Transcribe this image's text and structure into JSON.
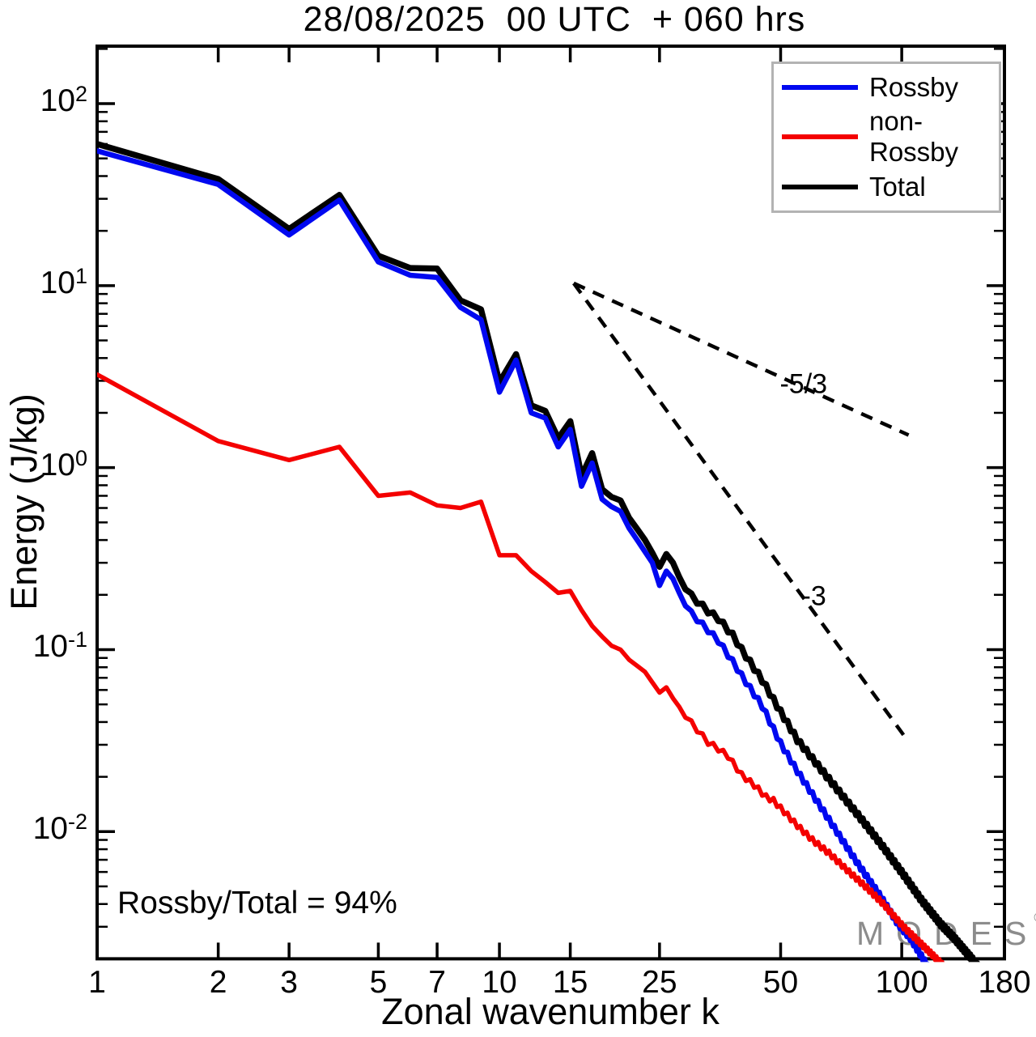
{
  "title": "28/08/2025  00 UTC  + 060 hrs",
  "axes": {
    "xlabel": "Zonal wavenumber k",
    "ylabel": "Energy (J/kg)"
  },
  "annotations": {
    "ratio_text": "Rossby/Total = 94%",
    "slope_shallow": "-5/3",
    "slope_steep": "-3"
  },
  "watermark": {
    "text": "MODES",
    "symbol": "©"
  },
  "legend": {
    "items": [
      {
        "label": "Rossby",
        "color": "#0008f0"
      },
      {
        "label": "non-Rossby",
        "color": "#f40000"
      },
      {
        "label": "Total",
        "color": "#000000"
      }
    ]
  },
  "chart_data": {
    "type": "line",
    "title": "28/08/2025  00 UTC  + 060 hrs",
    "xlabel": "Zonal wavenumber k",
    "ylabel": "Energy (J/kg)",
    "x_scale": "log",
    "y_scale": "log",
    "xlim": [
      1,
      180
    ],
    "ylim": [
      0.002,
      207
    ],
    "grid": false,
    "legend_position": "top-right",
    "x_ticks": [
      1,
      2,
      3,
      5,
      7,
      10,
      15,
      25,
      50,
      100,
      180
    ],
    "y_tick_exponents": [
      2,
      1,
      0,
      -1,
      -2
    ],
    "series": [
      {
        "name": "Rossby",
        "color": "#0008f0",
        "width": 6.5,
        "points": [
          [
            1,
            55
          ],
          [
            2,
            36
          ],
          [
            3,
            19
          ],
          [
            4,
            29.5
          ],
          [
            5,
            13.5
          ],
          [
            6,
            11.4
          ],
          [
            7,
            11.1
          ],
          [
            8,
            7.6
          ],
          [
            9,
            6.5
          ],
          [
            10,
            2.6
          ],
          [
            11,
            3.9
          ],
          [
            12,
            2.0
          ],
          [
            13,
            1.87
          ],
          [
            14,
            1.3
          ],
          [
            15,
            1.62
          ],
          [
            16,
            0.79
          ],
          [
            17,
            1.06
          ],
          [
            18,
            0.67
          ],
          [
            19,
            0.61
          ],
          [
            20,
            0.575
          ],
          [
            21,
            0.465
          ],
          [
            22,
            0.4
          ],
          [
            23,
            0.345
          ],
          [
            24,
            0.3
          ],
          [
            25,
            0.225
          ],
          [
            26,
            0.27
          ],
          [
            27,
            0.245
          ],
          [
            28,
            0.205
          ],
          [
            30,
            0.158
          ],
          [
            33,
            0.128
          ],
          [
            35,
            0.112
          ],
          [
            38,
            0.086
          ],
          [
            40,
            0.072
          ],
          [
            45,
            0.049
          ],
          [
            50,
            0.0305
          ],
          [
            55,
            0.0215
          ],
          [
            63,
            0.0136
          ],
          [
            70,
            0.0095
          ],
          [
            78,
            0.0066
          ],
          [
            88,
            0.0045
          ],
          [
            98,
            0.0031
          ],
          [
            105,
            0.0026
          ],
          [
            113,
            0.002
          ],
          [
            118,
            0.0017
          ]
        ]
      },
      {
        "name": "non-Rossby",
        "color": "#f40000",
        "width": 5.5,
        "points": [
          [
            1,
            3.25
          ],
          [
            2,
            1.4
          ],
          [
            3,
            1.1
          ],
          [
            4,
            1.3
          ],
          [
            5,
            0.7
          ],
          [
            6,
            0.73
          ],
          [
            7,
            0.62
          ],
          [
            8,
            0.6
          ],
          [
            9,
            0.65
          ],
          [
            10,
            0.33
          ],
          [
            11,
            0.33
          ],
          [
            12,
            0.27
          ],
          [
            13,
            0.235
          ],
          [
            14,
            0.205
          ],
          [
            15,
            0.21
          ],
          [
            16,
            0.165
          ],
          [
            17,
            0.135
          ],
          [
            18,
            0.118
          ],
          [
            19,
            0.105
          ],
          [
            20,
            0.1
          ],
          [
            21,
            0.088
          ],
          [
            23,
            0.0755
          ],
          [
            25,
            0.058
          ],
          [
            26,
            0.062
          ],
          [
            27,
            0.054
          ],
          [
            30,
            0.0395
          ],
          [
            33,
            0.031
          ],
          [
            35,
            0.0285
          ],
          [
            37,
            0.026
          ],
          [
            40,
            0.0205
          ],
          [
            43,
            0.018
          ],
          [
            46,
            0.0155
          ],
          [
            48,
            0.0148
          ],
          [
            55,
            0.0108
          ],
          [
            60,
            0.009
          ],
          [
            66,
            0.0076
          ],
          [
            74,
            0.006
          ],
          [
            82,
            0.0049
          ],
          [
            90,
            0.004
          ],
          [
            101,
            0.003
          ],
          [
            110,
            0.0025
          ],
          [
            122,
            0.002
          ],
          [
            128,
            0.0018
          ]
        ]
      },
      {
        "name": "Total",
        "color": "#000000",
        "width": 7.5,
        "points": [
          [
            1,
            60
          ],
          [
            2,
            38.5
          ],
          [
            3,
            20.5
          ],
          [
            4,
            31.5
          ],
          [
            5,
            14.6
          ],
          [
            6,
            12.5
          ],
          [
            7,
            12.4
          ],
          [
            8,
            8.3
          ],
          [
            9,
            7.4
          ],
          [
            10,
            2.95
          ],
          [
            11,
            4.2
          ],
          [
            12,
            2.2
          ],
          [
            13,
            2.05
          ],
          [
            14,
            1.45
          ],
          [
            15,
            1.8
          ],
          [
            16,
            0.9
          ],
          [
            17,
            1.2
          ],
          [
            18,
            0.76
          ],
          [
            19,
            0.69
          ],
          [
            20,
            0.66
          ],
          [
            21,
            0.53
          ],
          [
            22,
            0.46
          ],
          [
            23,
            0.4
          ],
          [
            24,
            0.34
          ],
          [
            25,
            0.285
          ],
          [
            26,
            0.335
          ],
          [
            27,
            0.3
          ],
          [
            28,
            0.25
          ],
          [
            30,
            0.197
          ],
          [
            33,
            0.163
          ],
          [
            35,
            0.148
          ],
          [
            38,
            0.12
          ],
          [
            40,
            0.1
          ],
          [
            45,
            0.068
          ],
          [
            50,
            0.0455
          ],
          [
            55,
            0.032
          ],
          [
            62,
            0.023
          ],
          [
            70,
            0.0165
          ],
          [
            82,
            0.0107
          ],
          [
            90,
            0.0082
          ],
          [
            101,
            0.0058
          ],
          [
            112,
            0.0042
          ],
          [
            125,
            0.0031
          ],
          [
            135,
            0.0026
          ],
          [
            148,
            0.00205
          ],
          [
            155,
            0.0018
          ]
        ]
      }
    ],
    "reference_lines": [
      {
        "label": "-5/3",
        "from": [
          15.3,
          10.3
        ],
        "to": [
          104,
          1.51
        ],
        "style": "dashed",
        "color": "#000000"
      },
      {
        "label": "-3",
        "from": [
          15.3,
          10.3
        ],
        "to": [
          101,
          0.034
        ],
        "style": "dashed",
        "color": "#000000"
      }
    ],
    "slope_label_anchors": [
      {
        "label": "-5/3",
        "k": 57,
        "E": 2.85
      },
      {
        "label": "-3",
        "k": 60.5,
        "E": 0.196
      }
    ],
    "extra_text": "Rossby/Total = 94%"
  }
}
